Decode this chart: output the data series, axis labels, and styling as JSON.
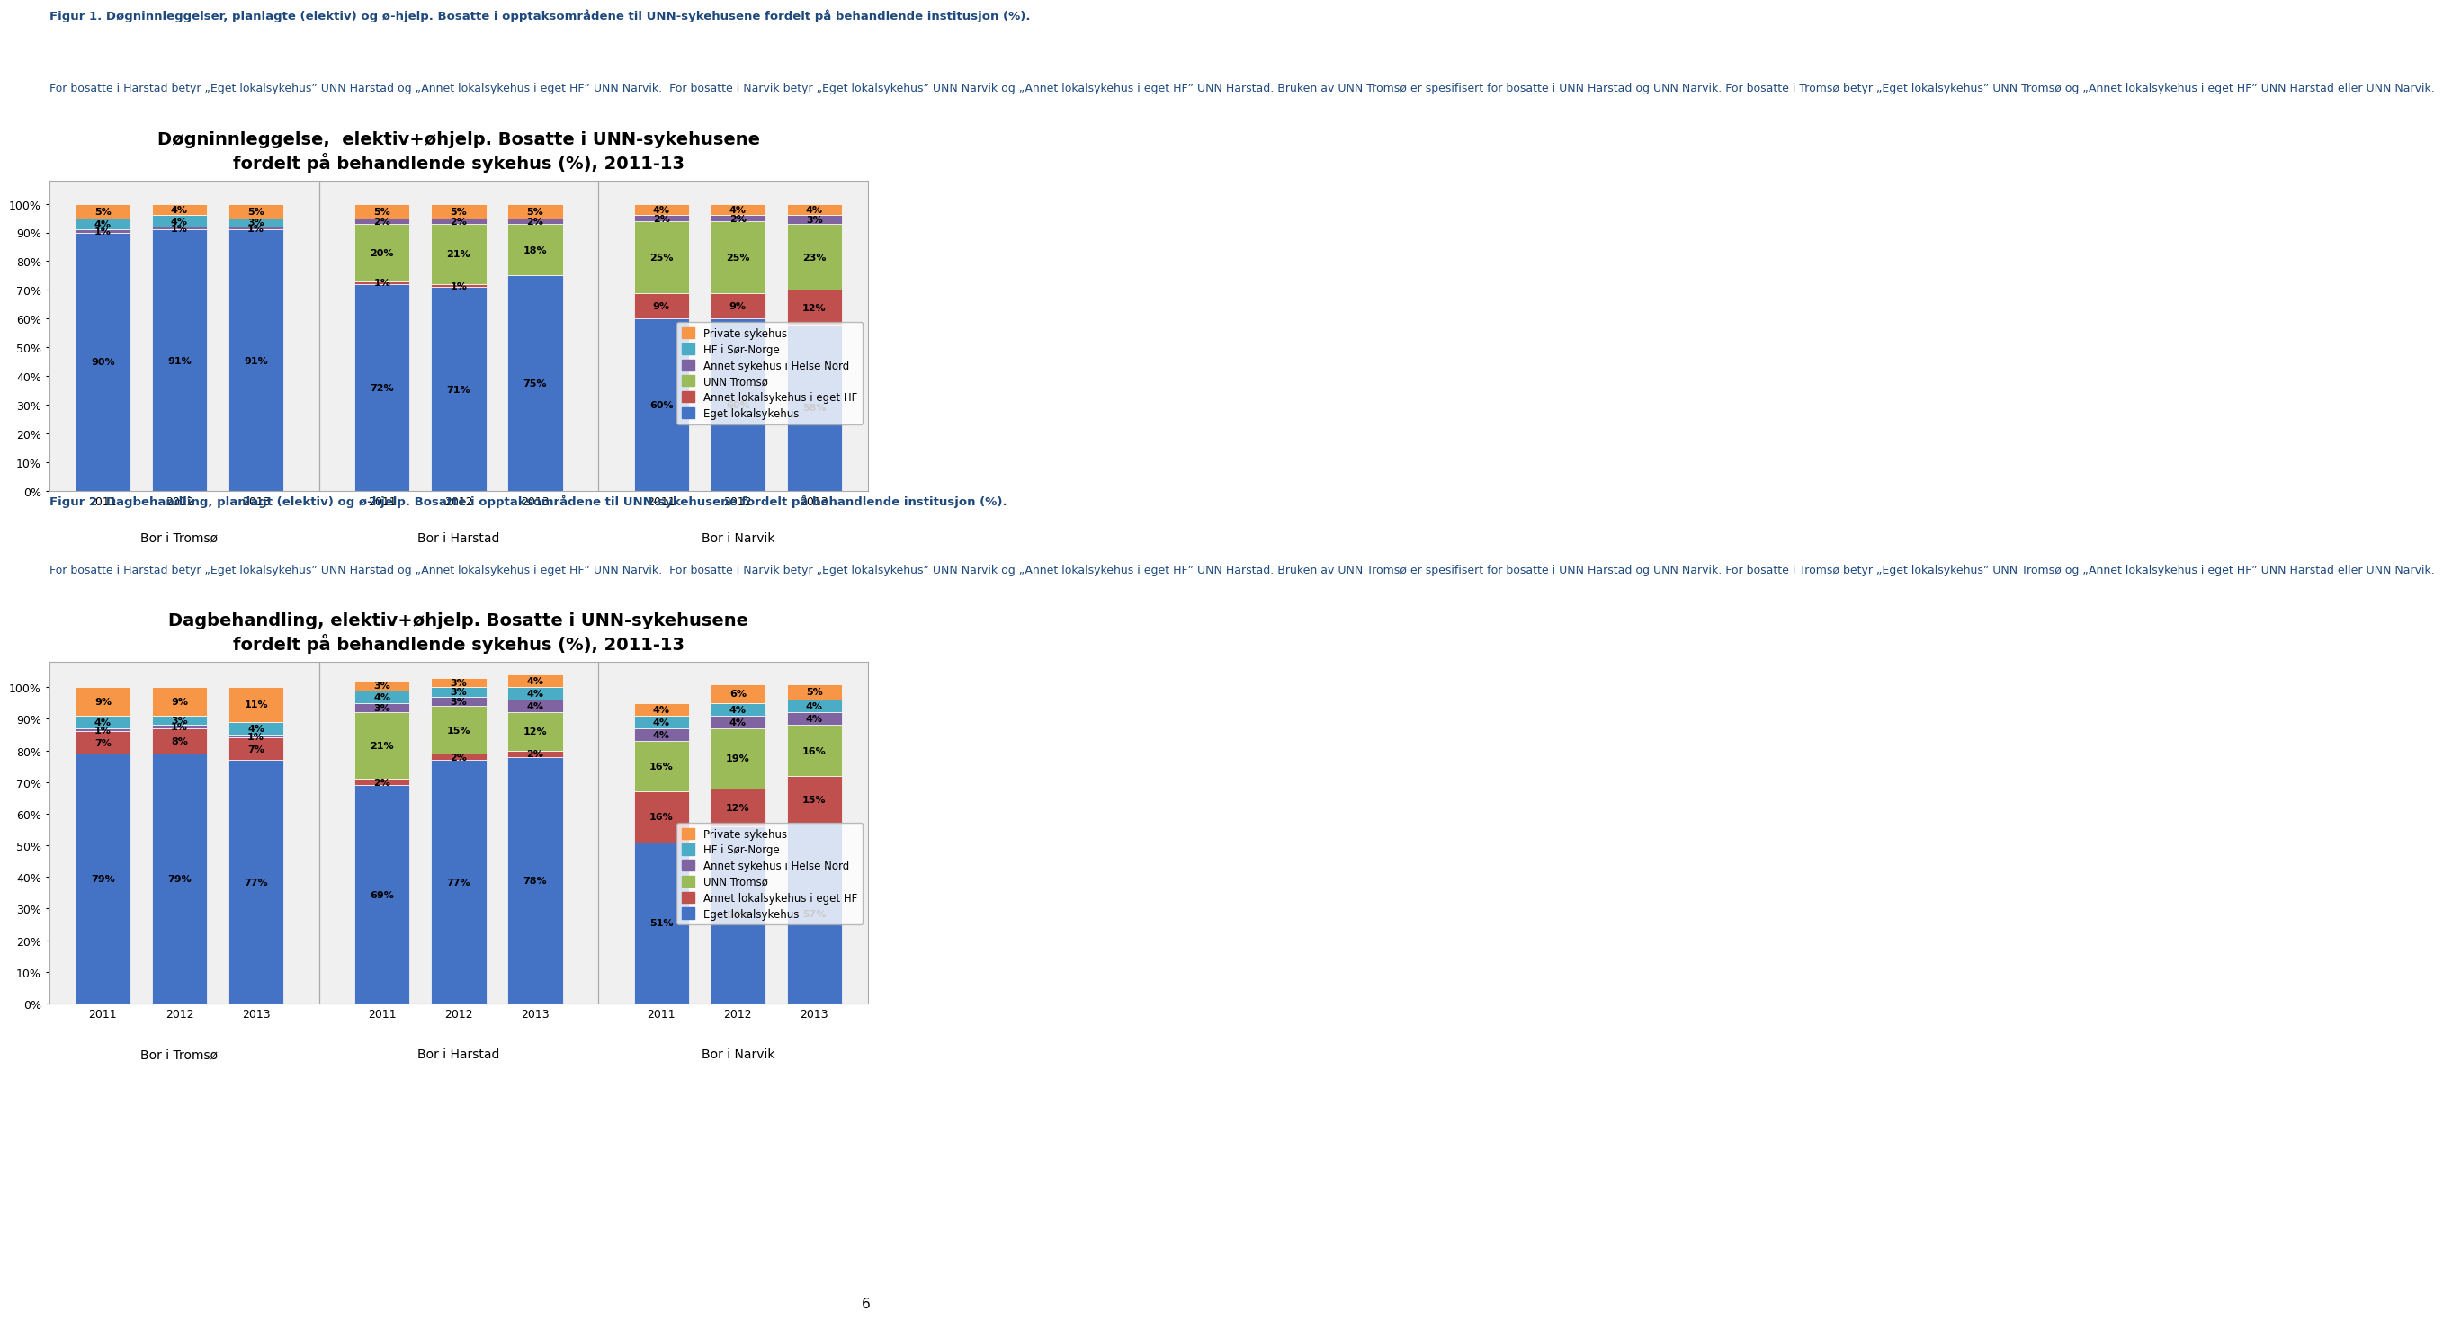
{
  "chart1": {
    "title_line1": "Døgninnleggelse,  elektiv+øhjelp. Bosatte i UNN-sykehusene",
    "title_line2": "fordelt på behandlende sykehus (%), 2011-13",
    "groups": [
      "Bor i Tromsø",
      "Bor i Harstad",
      "Bor i Narvik"
    ],
    "years": [
      "2011",
      "2012",
      "2013"
    ],
    "data": {
      "Eget lokalsykehus": [
        90,
        91,
        91,
        72,
        71,
        75,
        60,
        60,
        58
      ],
      "Annet lokalsykehus i eget HF": [
        0,
        0,
        0,
        1,
        1,
        0,
        9,
        9,
        12
      ],
      "UNN Tromsø": [
        0,
        0,
        0,
        20,
        21,
        18,
        25,
        25,
        23
      ],
      "Annet sykehus i Helse Nord": [
        1,
        1,
        1,
        2,
        2,
        2,
        2,
        2,
        3
      ],
      "HF i Sør-Norge": [
        4,
        4,
        3,
        0,
        0,
        0,
        0,
        0,
        0
      ],
      "Private sykehus": [
        5,
        4,
        5,
        5,
        5,
        5,
        4,
        4,
        4
      ]
    },
    "colors": {
      "Eget lokalsykehus": "#4472C4",
      "Annet lokalsykehus i eget HF": "#C0504D",
      "UNN Tromsø": "#9BBB59",
      "Annet sykehus i Helse Nord": "#8064A2",
      "HF i Sør-Norge": "#4BACC6",
      "Private sykehus": "#F79646"
    }
  },
  "chart2": {
    "title_line1": "Dagbehandling, elektiv+øhjelp. Bosatte i UNN-sykehusene",
    "title_line2": "fordelt på behandlende sykehus (%), 2011-13",
    "groups": [
      "Bor i Tromsø",
      "Bor i Harstad",
      "Bor i Narvik"
    ],
    "years": [
      "2011",
      "2012",
      "2013"
    ],
    "data": {
      "Eget lokalsykehus": [
        79,
        79,
        77,
        69,
        77,
        78,
        51,
        56,
        57
      ],
      "Annet lokalsykehus i eget HF": [
        7,
        8,
        7,
        2,
        2,
        2,
        16,
        12,
        15
      ],
      "UNN Tromsø": [
        0,
        0,
        0,
        21,
        15,
        12,
        16,
        19,
        16
      ],
      "Annet sykehus i Helse Nord": [
        1,
        1,
        1,
        3,
        3,
        4,
        4,
        4,
        4
      ],
      "HF i Sør-Norge": [
        4,
        3,
        4,
        4,
        3,
        4,
        4,
        4,
        4
      ],
      "Private sykehus": [
        9,
        9,
        11,
        3,
        3,
        4,
        4,
        6,
        5
      ]
    },
    "colors": {
      "Eget lokalsykehus": "#4472C4",
      "Annet lokalsykehus i eget HF": "#C0504D",
      "UNN Tromsø": "#9BBB59",
      "Annet sykehus i Helse Nord": "#8064A2",
      "HF i Sør-Norge": "#4BACC6",
      "Private sykehus": "#F79646"
    }
  },
  "fig1_title_bold": "Figur 1. Døgninnleggelser, planlagte (elektiv) og ø-hjelp. Bosatte i opptaksområdene til UNN-sykehusene fordelt på behandlende institusjon (%).",
  "fig1_sub": "For bosatte i Harstad betyr „Eget lokalsykehus” UNN Harstad og „Annet lokalsykehus i eget HF” UNN Narvik.  For bosatte i Narvik betyr „Eget lokalsykehus” UNN Narvik og „Annet lokalsykehus i eget HF” UNN Harstad. Bruken av UNN Tromsø er spesifisert for bosatte i UNN Harstad og UNN Narvik. For bosatte i Tromsø betyr „Eget lokalsykehus” UNN Tromsø og „Annet lokalsykehus i eget HF” UNN Harstad eller UNN Narvik.",
  "fig2_title_bold": "Figur 2. Dagbehandling, planlagt (elektiv) og ø-hjelp. Bosatte i opptaksområdene til UNN-sykehusene fordelt på behandlende institusjon (%).",
  "fig2_sub": "For bosatte i Harstad betyr „Eget lokalsykehus” UNN Harstad og „Annet lokalsykehus i eget HF” UNN Narvik.  For bosatte i Narvik betyr „Eget lokalsykehus” UNN Narvik og „Annet lokalsykehus i eget HF” UNN Harstad. Bruken av UNN Tromsø er spesifisert for bosatte i UNN Harstad og UNN Narvik. For bosatte i Tromsø betyr „Eget lokalsykehus” UNN Tromsø og „Annet lokalsykehus i eget HF” UNN Harstad eller UNN Narvik.",
  "page_number": "6",
  "blue": "#1F497D",
  "background": "#FFFFFF"
}
